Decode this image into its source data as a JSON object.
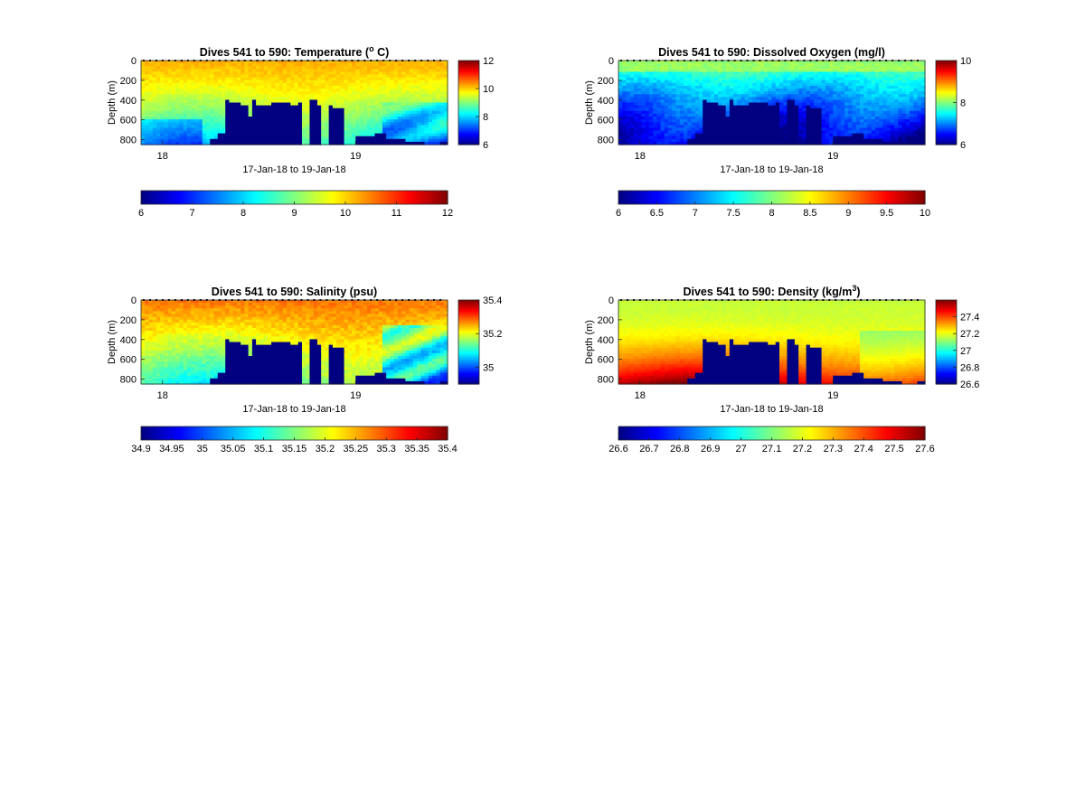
{
  "chart_data": [
    {
      "type": "heatmap",
      "variable": "temperature",
      "title": "Dives 541 to 590: Temperature (",
      "title_sup": "o",
      "title_tail": " C)",
      "ylabel": "Depth (m)",
      "xlabel": "17-Jan-18 to 19-Jan-18",
      "x_ticks": [
        "18",
        "19"
      ],
      "y_ticks": [
        0,
        200,
        400,
        600,
        800
      ],
      "ylim": [
        0,
        850
      ],
      "clim": [
        6,
        12
      ],
      "colorbar_ticks": [
        6,
        8,
        10,
        12
      ],
      "h_colorbar_ticks": [
        6,
        7,
        8,
        9,
        10,
        11,
        12
      ],
      "colormap": "jet"
    },
    {
      "type": "heatmap",
      "variable": "oxygen",
      "title": "Dives 541 to 590: Dissolved Oxygen (mg/l)",
      "title_sup": "",
      "title_tail": "",
      "ylabel": "Depth (m)",
      "xlabel": "17-Jan-18 to 19-Jan-18",
      "x_ticks": [
        "18",
        "19"
      ],
      "y_ticks": [
        0,
        200,
        400,
        600,
        800
      ],
      "ylim": [
        0,
        850
      ],
      "clim": [
        6,
        10
      ],
      "colorbar_ticks": [
        6,
        8,
        10
      ],
      "h_colorbar_ticks": [
        6,
        6.5,
        7,
        7.5,
        8,
        8.5,
        9,
        9.5,
        10
      ],
      "colormap": "jet"
    },
    {
      "type": "heatmap",
      "variable": "salinity",
      "title": "Dives 541 to 590: Salinity (psu)",
      "title_sup": "",
      "title_tail": "",
      "ylabel": "Depth (m)",
      "xlabel": "17-Jan-18 to 19-Jan-18",
      "x_ticks": [
        "18",
        "19"
      ],
      "y_ticks": [
        0,
        200,
        400,
        600,
        800
      ],
      "ylim": [
        0,
        850
      ],
      "clim": [
        34.9,
        35.4
      ],
      "colorbar_ticks": [
        35,
        35.2,
        35.4
      ],
      "h_colorbar_ticks": [
        34.9,
        34.95,
        35,
        35.05,
        35.1,
        35.15,
        35.2,
        35.25,
        35.3,
        35.35,
        35.4
      ],
      "colormap": "jet"
    },
    {
      "type": "heatmap",
      "variable": "density",
      "title": "Dives 541 to 590: Density (kg/m",
      "title_sup": "3",
      "title_tail": ")",
      "ylabel": "Depth (m)",
      "xlabel": "17-Jan-18 to 19-Jan-18",
      "x_ticks": [
        "18",
        "19"
      ],
      "y_ticks": [
        0,
        200,
        400,
        600,
        800
      ],
      "ylim": [
        0,
        850
      ],
      "clim": [
        26.6,
        27.6
      ],
      "colorbar_ticks": [
        26.6,
        26.8,
        27,
        27.2,
        27.4
      ],
      "h_colorbar_ticks": [
        26.6,
        26.7,
        26.8,
        26.9,
        27,
        27.1,
        27.2,
        27.3,
        27.4,
        27.5,
        27.6
      ],
      "colormap": "jet"
    }
  ],
  "colors": {
    "background": "#ffffff",
    "no_data": "#000080"
  }
}
